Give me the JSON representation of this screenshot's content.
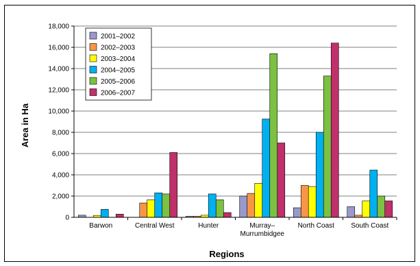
{
  "chart_data": {
    "type": "bar",
    "title": "",
    "xlabel": "Regions",
    "ylabel": "Area in Ha",
    "ylim": [
      0,
      18000
    ],
    "yticks": [
      0,
      2000,
      4000,
      6000,
      8000,
      10000,
      12000,
      14000,
      16000,
      18000
    ],
    "ytick_labels": [
      "0",
      "2,000",
      "4,000",
      "6,000",
      "8,000",
      "10,000",
      "12,000",
      "14,000",
      "16,000",
      "18,000"
    ],
    "grid": "horizontal",
    "legend_position": "top-left",
    "categories": [
      [
        "Barwon"
      ],
      [
        "Central West"
      ],
      [
        "Hunter"
      ],
      [
        "Murray–",
        "Murrumbidgee"
      ],
      [
        "North Coast"
      ],
      [
        "South Coast"
      ]
    ],
    "series": [
      {
        "name": "2001–2002",
        "color": "#9999cc",
        "values": [
          200,
          0,
          100,
          2000,
          900,
          1000
        ]
      },
      {
        "name": "2002–2003",
        "color": "#f79646",
        "values": [
          0,
          1350,
          100,
          2250,
          3000,
          200
        ]
      },
      {
        "name": "2003–2004",
        "color": "#ffff00",
        "values": [
          180,
          1650,
          200,
          3200,
          2900,
          1550
        ]
      },
      {
        "name": "2004–2005",
        "color": "#00b0f0",
        "values": [
          750,
          2300,
          2200,
          9250,
          8000,
          4450
        ]
      },
      {
        "name": "2005–2006",
        "color": "#7cc142",
        "values": [
          0,
          2200,
          1650,
          15400,
          13300,
          2000
        ]
      },
      {
        "name": "2006–2007",
        "color": "#c0306a",
        "values": [
          300,
          6100,
          450,
          7000,
          16400,
          1550
        ]
      }
    ]
  }
}
